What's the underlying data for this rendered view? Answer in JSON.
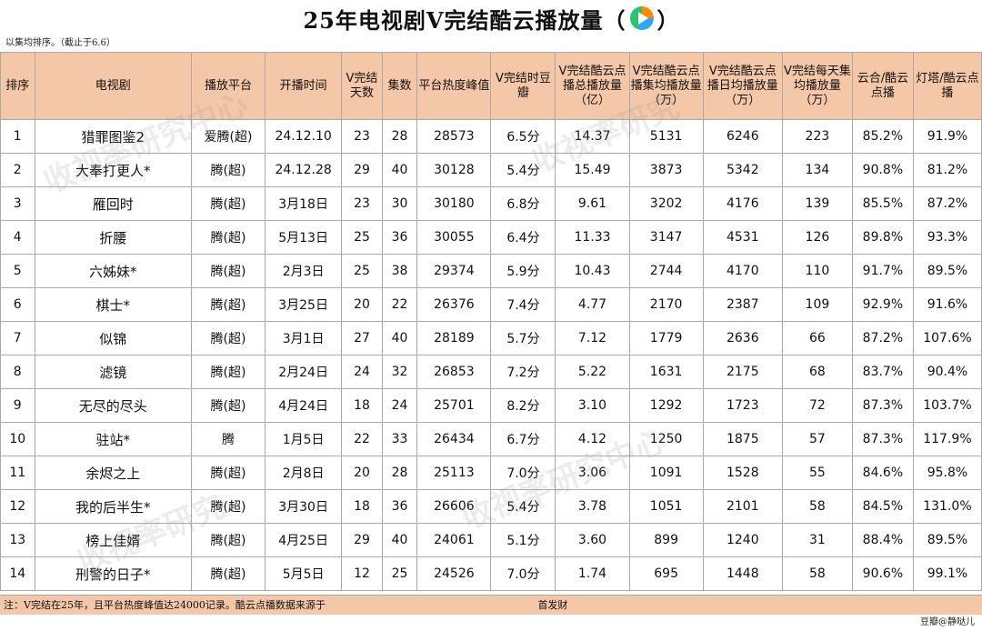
{
  "title": {
    "text": "25年电视剧V完结酷云播放量（",
    "close": "）",
    "logo_icon": "tencent-video-play-icon"
  },
  "subtitle": "以集均排序。（截止于6.6）",
  "table": {
    "headers": [
      "排序",
      "电视剧",
      "播放平台",
      "开播时间",
      "V完结天数",
      "集数",
      "平台热度峰值",
      "V完结时豆瓣",
      "V完结酷云点播总播放量（亿）",
      "V完结酷云点播集均播放量（万）",
      "V完结酷云点播日均播放量（万）",
      "V完结每天集均播放量（万）",
      "云合/酷云点播",
      "灯塔/酷云点播"
    ],
    "rows": [
      [
        "1",
        "猎罪图鉴2",
        "爱腾(超)",
        "24.12.10",
        "23",
        "28",
        "28573",
        "6.5分",
        "14.37",
        "5131",
        "6246",
        "223",
        "85.2%",
        "91.9%"
      ],
      [
        "2",
        "大奉打更人*",
        "腾(超)",
        "24.12.28",
        "29",
        "40",
        "30128",
        "5.4分",
        "15.49",
        "3873",
        "5342",
        "134",
        "90.8%",
        "81.2%"
      ],
      [
        "3",
        "雁回时",
        "腾(超)",
        "3月18日",
        "23",
        "30",
        "30180",
        "6.8分",
        "9.61",
        "3202",
        "4176",
        "139",
        "85.5%",
        "87.2%"
      ],
      [
        "4",
        "折腰",
        "腾(超)",
        "5月13日",
        "25",
        "36",
        "30055",
        "6.4分",
        "11.33",
        "3147",
        "4531",
        "126",
        "89.8%",
        "93.3%"
      ],
      [
        "5",
        "六姊妹*",
        "腾(超)",
        "2月3日",
        "25",
        "38",
        "29374",
        "5.9分",
        "10.43",
        "2744",
        "4170",
        "110",
        "91.7%",
        "89.5%"
      ],
      [
        "6",
        "棋士*",
        "腾(超)",
        "3月25日",
        "20",
        "22",
        "26376",
        "7.4分",
        "4.77",
        "2170",
        "2387",
        "109",
        "92.9%",
        "91.6%"
      ],
      [
        "7",
        "似锦",
        "腾(超)",
        "3月1日",
        "27",
        "40",
        "28189",
        "5.7分",
        "7.12",
        "1779",
        "2636",
        "66",
        "87.2%",
        "107.6%"
      ],
      [
        "8",
        "滤镜",
        "腾(超)",
        "2月24日",
        "24",
        "32",
        "26853",
        "7.2分",
        "5.22",
        "1631",
        "2175",
        "68",
        "83.7%",
        "90.4%"
      ],
      [
        "9",
        "无尽的尽头",
        "腾(超)",
        "4月24日",
        "18",
        "24",
        "25701",
        "8.2分",
        "3.10",
        "1292",
        "1723",
        "72",
        "87.3%",
        "103.7%"
      ],
      [
        "10",
        "驻站*",
        "腾",
        "1月5日",
        "22",
        "33",
        "26434",
        "6.7分",
        "4.12",
        "1250",
        "1875",
        "57",
        "87.3%",
        "117.9%"
      ],
      [
        "11",
        "余烬之上",
        "腾(超)",
        "2月8日",
        "20",
        "28",
        "25113",
        "7.0分",
        "3.06",
        "1091",
        "1528",
        "55",
        "84.6%",
        "95.8%"
      ],
      [
        "12",
        "我的后半生*",
        "腾(超)",
        "3月30日",
        "18",
        "36",
        "26606",
        "5.4分",
        "3.78",
        "1051",
        "2101",
        "58",
        "84.5%",
        "131.0%"
      ],
      [
        "13",
        "榜上佳婿",
        "腾(超)",
        "4月25日",
        "29",
        "40",
        "24061",
        "5.1分",
        "3.60",
        "899",
        "1240",
        "31",
        "88.4%",
        "89.5%"
      ],
      [
        "14",
        "刑警的日子*",
        "腾(超)",
        "5月5日",
        "12",
        "25",
        "24526",
        "7.0分",
        "1.74",
        "695",
        "1448",
        "58",
        "90.6%",
        "99.1%"
      ]
    ]
  },
  "footer": "注：V完结在25年，且平台热度峰值达24000记录。酷云点播数据来源于",
  "footer_tail": "首发财",
  "credit": "豆瓣@静哒儿"
}
